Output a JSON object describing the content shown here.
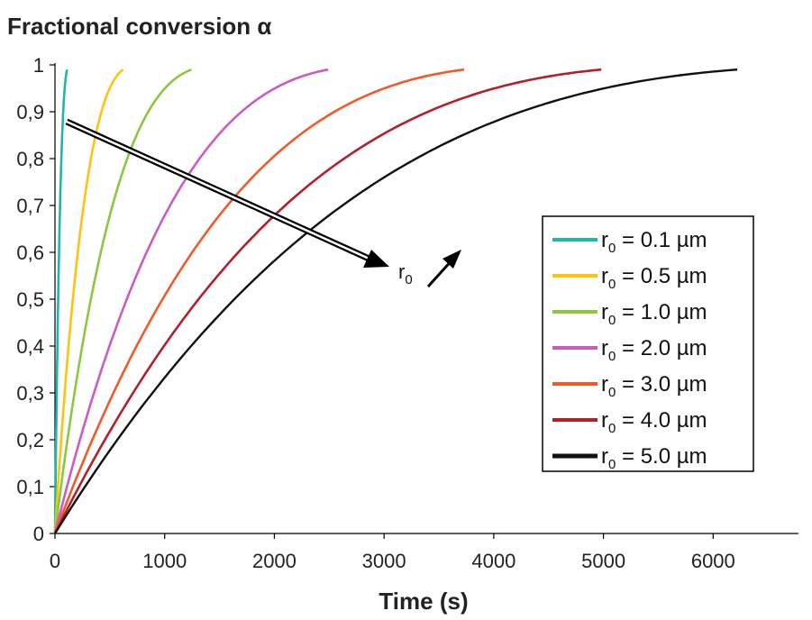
{
  "chart_data": {
    "type": "line",
    "title": "Fractional conversion α",
    "xlabel": "Time (s)",
    "ylabel": "",
    "xlim": [
      0,
      6400
    ],
    "ylim": [
      0,
      1
    ],
    "x_ticks": [
      "0",
      "1000",
      "2000",
      "3000",
      "4000",
      "5000",
      "6000"
    ],
    "y_ticks": [
      "0",
      "0,1",
      "0,2",
      "0,3",
      "0,4",
      "0,5",
      "0,6",
      "0,7",
      "0,8",
      "0,9",
      "1"
    ],
    "grid": false,
    "legend_position": "right",
    "series": [
      {
        "name": "r0 = 0.1 µm",
        "label_main": "r",
        "label_sub": "0",
        "label_rest": " = 0.1 µm",
        "color": "#1fb5ad",
        "t_end": 110
      },
      {
        "name": "r0 = 0.5 µm",
        "label_main": "r",
        "label_sub": "0",
        "label_rest": " = 0.5 µm",
        "color": "#ffc20e",
        "t_end": 620
      },
      {
        "name": "r0 = 1.0 µm",
        "label_main": "r",
        "label_sub": "0",
        "label_rest": " = 1.0 µm",
        "color": "#8dc63f",
        "t_end": 1245
      },
      {
        "name": "r0 = 2.0 µm",
        "label_main": "r",
        "label_sub": "0",
        "label_rest": " = 2.0 µm",
        "color": "#cc5cc0",
        "t_end": 2490
      },
      {
        "name": "r0 = 3.0 µm",
        "label_main": "r",
        "label_sub": "0",
        "label_rest": " = 3.0 µm",
        "color": "#f15a29",
        "t_end": 3730
      },
      {
        "name": "r0 = 4.0 µm",
        "label_main": "r",
        "label_sub": "0",
        "label_rest": " = 4.0 µm",
        "color": "#b3202a",
        "t_end": 4980
      },
      {
        "name": "r0 = 5.0 µm",
        "label_main": "r",
        "label_sub": "0",
        "label_rest": " = 5.0 µm",
        "color": "#111111",
        "t_end": 6220
      }
    ],
    "curve_end_alpha": 0.99,
    "annotation": {
      "main": "r",
      "sub": "0"
    }
  }
}
